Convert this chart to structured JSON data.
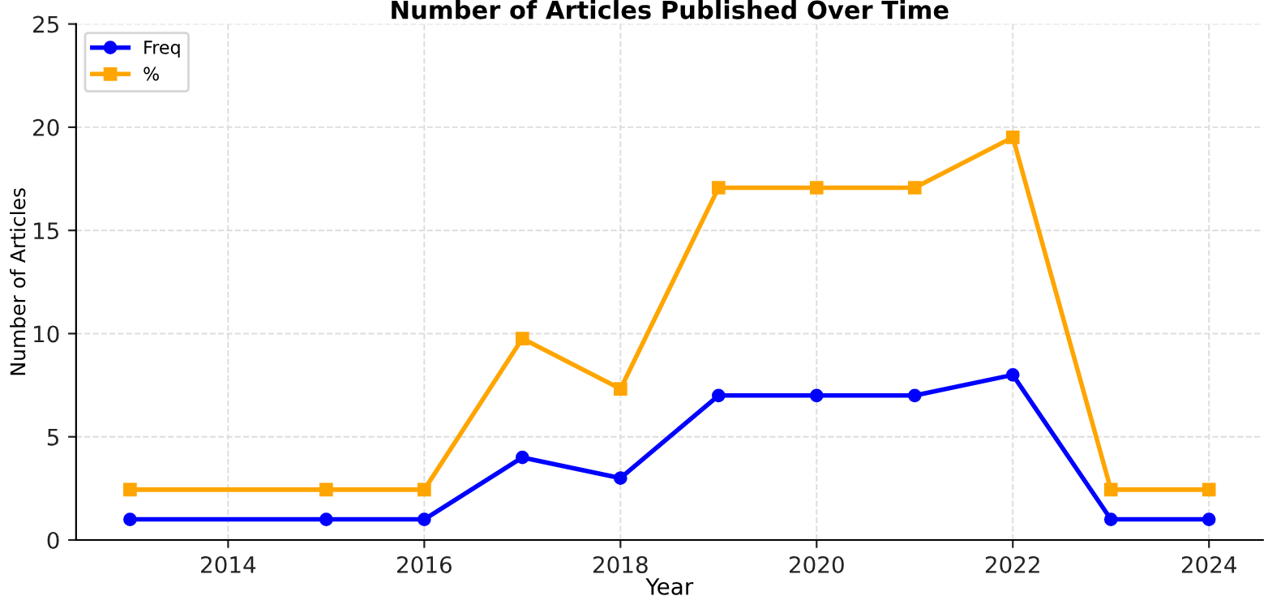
{
  "chart_data": {
    "type": "line",
    "title": "Number of Articles Published Over Time",
    "xlabel": "Year",
    "ylabel": "Number of Articles",
    "x": [
      2013,
      2015,
      2016,
      2017,
      2018,
      2019,
      2020,
      2021,
      2022,
      2023,
      2024
    ],
    "series": [
      {
        "name": "Freq",
        "color": "#0000ff",
        "marker": "circle",
        "values": [
          1,
          1,
          1,
          4,
          3,
          7,
          7,
          7,
          8,
          1,
          1
        ]
      },
      {
        "name": "%",
        "color": "#ffa500",
        "marker": "square",
        "values": [
          2.44,
          2.44,
          2.44,
          9.76,
          7.32,
          17.07,
          17.07,
          17.07,
          19.51,
          2.44,
          2.44
        ]
      }
    ],
    "xlim": [
      2012.45,
      2024.55
    ],
    "ylim": [
      0,
      25
    ],
    "xticks": [
      2014,
      2016,
      2018,
      2020,
      2022,
      2024
    ],
    "yticks": [
      0,
      5,
      10,
      15,
      20,
      25
    ],
    "grid": true,
    "legend": "top left",
    "line_style": "solid"
  }
}
